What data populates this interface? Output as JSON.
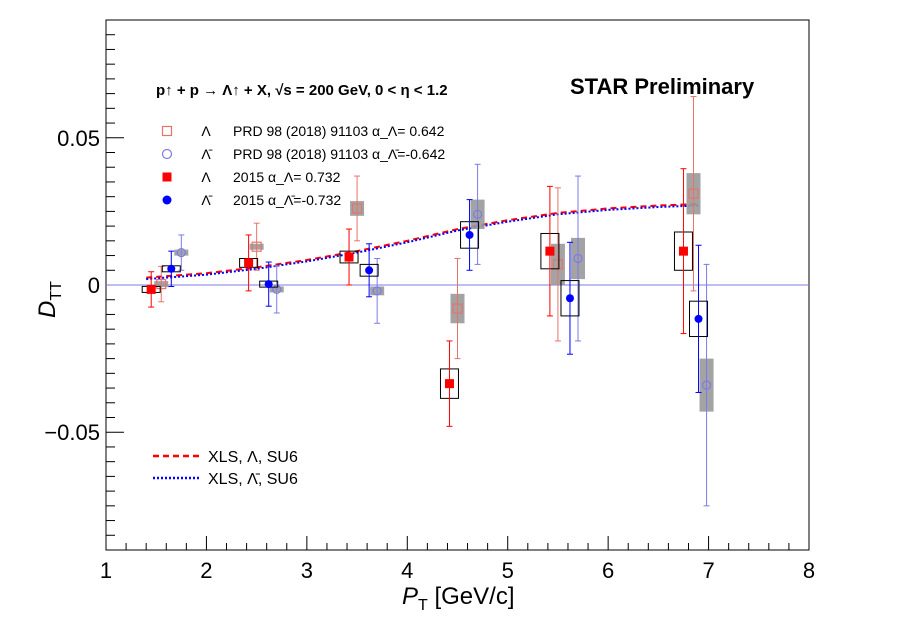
{
  "chart_data": {
    "type": "scatter",
    "title": "STAR Preliminary",
    "reaction": "p↑ + p → Λ↑ + X,   √s = 200 GeV,  0 < η < 1.2",
    "xlabel": "P_T [GeV/c]",
    "xlabel_main": "P",
    "xlabel_sub": "T",
    "xlabel_unit": " [GeV/c]",
    "ylabel": "D_TT",
    "ylabel_main": "D",
    "ylabel_sub": "TT",
    "xlim": [
      1,
      8
    ],
    "ylim": [
      -0.09,
      0.09
    ],
    "x_ticks": [
      1,
      2,
      3,
      4,
      5,
      6,
      7,
      8
    ],
    "x_tick_labels": [
      "1",
      "2",
      "3",
      "4",
      "5",
      "6",
      "7",
      "8"
    ],
    "y_ticks": [
      -0.05,
      0,
      0.05
    ],
    "y_tick_labels": [
      "−0.05",
      "0",
      "0.05"
    ],
    "legend": [
      {
        "symbol": "open-square",
        "color": "#e8736b",
        "particle": "Λ",
        "text": "PRD 98 (2018) 91103  α_Λ= 0.642"
      },
      {
        "symbol": "open-circle",
        "color": "#7c7ce8",
        "particle": "Λ̄",
        "text": "PRD 98 (2018) 91103  α_Λ̄=-0.642"
      },
      {
        "symbol": "filled-square",
        "color": "#ff0000",
        "particle": "Λ",
        "text": "2015  α_Λ= 0.732"
      },
      {
        "symbol": "filled-circle",
        "color": "#0000ff",
        "particle": "Λ̄",
        "text": "2015  α_Λ̄=-0.732"
      }
    ],
    "legend_lines": [
      {
        "style": "dashed",
        "color": "#ff0000",
        "text": "XLS, Λ, SU6"
      },
      {
        "style": "dotted",
        "color": "#0000ff",
        "text": "XLS, Λ̄, SU6"
      }
    ],
    "series": [
      {
        "name": "Λ PRD 98 (2018) 91103",
        "marker": "open-square",
        "color": "#e8736b",
        "syscolor": "#999999",
        "points": [
          {
            "x": 1.55,
            "y": 0.0003,
            "err": 0.006,
            "sys": 0.001
          },
          {
            "x": 2.5,
            "y": 0.013,
            "err": 0.008,
            "sys": 0.001
          },
          {
            "x": 3.5,
            "y": 0.026,
            "err": 0.011,
            "sys": 0.0025
          },
          {
            "x": 4.5,
            "y": -0.008,
            "err": 0.017,
            "sys": 0.005
          },
          {
            "x": 5.5,
            "y": 0.007,
            "err": 0.026,
            "sys": 0.007
          },
          {
            "x": 6.85,
            "y": 0.031,
            "err": 0.033,
            "sys": 0.007
          }
        ]
      },
      {
        "name": "Λ̄ PRD 98 (2018) 91103",
        "marker": "open-circle",
        "color": "#7c7ce8",
        "syscolor": "#999999",
        "points": [
          {
            "x": 1.75,
            "y": 0.011,
            "err": 0.006,
            "sys": 0.001
          },
          {
            "x": 2.7,
            "y": -0.0015,
            "err": 0.008,
            "sys": 0.001
          },
          {
            "x": 3.7,
            "y": -0.002,
            "err": 0.011,
            "sys": 0.0015
          },
          {
            "x": 4.7,
            "y": 0.024,
            "err": 0.017,
            "sys": 0.005
          },
          {
            "x": 5.7,
            "y": 0.009,
            "err": 0.028,
            "sys": 0.007
          },
          {
            "x": 6.98,
            "y": -0.034,
            "err": 0.041,
            "sys": 0.009
          }
        ]
      },
      {
        "name": "Λ 2015",
        "marker": "filled-square",
        "color": "#ff0000",
        "syscolor": "#000000",
        "points": [
          {
            "x": 1.45,
            "y": -0.0015,
            "err": 0.006,
            "sys": 0.0008
          },
          {
            "x": 2.42,
            "y": 0.0075,
            "err": 0.0095,
            "sys": 0.0015
          },
          {
            "x": 3.42,
            "y": 0.0095,
            "err": 0.0095,
            "sys": 0.002
          },
          {
            "x": 4.42,
            "y": -0.0335,
            "err": 0.0145,
            "sys": 0.005
          },
          {
            "x": 5.42,
            "y": 0.0115,
            "err": 0.022,
            "sys": 0.006
          },
          {
            "x": 6.75,
            "y": 0.0115,
            "err": 0.028,
            "sys": 0.0065
          }
        ]
      },
      {
        "name": "Λ̄ 2015",
        "marker": "filled-circle",
        "color": "#0000ff",
        "syscolor": "#000000",
        "points": [
          {
            "x": 1.65,
            "y": 0.0055,
            "err": 0.006,
            "sys": 0.0008
          },
          {
            "x": 2.62,
            "y": 0.0003,
            "err": 0.0075,
            "sys": 0.001
          },
          {
            "x": 3.62,
            "y": 0.005,
            "err": 0.009,
            "sys": 0.002
          },
          {
            "x": 4.62,
            "y": 0.017,
            "err": 0.012,
            "sys": 0.0045
          },
          {
            "x": 5.62,
            "y": -0.0045,
            "err": 0.019,
            "sys": 0.006
          },
          {
            "x": 6.9,
            "y": -0.0115,
            "err": 0.025,
            "sys": 0.006
          }
        ]
      }
    ],
    "curves": [
      {
        "name": "XLS, Λ, SU6",
        "style": "dashed",
        "color": "#ff0000",
        "x": [
          1.4,
          2.0,
          2.5,
          3.0,
          3.5,
          4.0,
          4.5,
          5.0,
          5.5,
          6.0,
          6.5,
          6.9
        ],
        "y": [
          0.0025,
          0.004,
          0.006,
          0.0085,
          0.0115,
          0.015,
          0.019,
          0.022,
          0.0245,
          0.026,
          0.027,
          0.0275
        ]
      },
      {
        "name": "XLS, Λ̄, SU6",
        "style": "dotted",
        "color": "#0000ff",
        "x": [
          1.4,
          2.0,
          2.5,
          3.0,
          3.5,
          4.0,
          4.5,
          5.0,
          5.5,
          6.0,
          6.5,
          6.9
        ],
        "y": [
          0.002,
          0.0035,
          0.0055,
          0.008,
          0.011,
          0.0145,
          0.0185,
          0.0215,
          0.024,
          0.0255,
          0.0265,
          0.027
        ]
      }
    ],
    "reference_line": {
      "y": 0,
      "color": "#7c7ce8"
    }
  }
}
